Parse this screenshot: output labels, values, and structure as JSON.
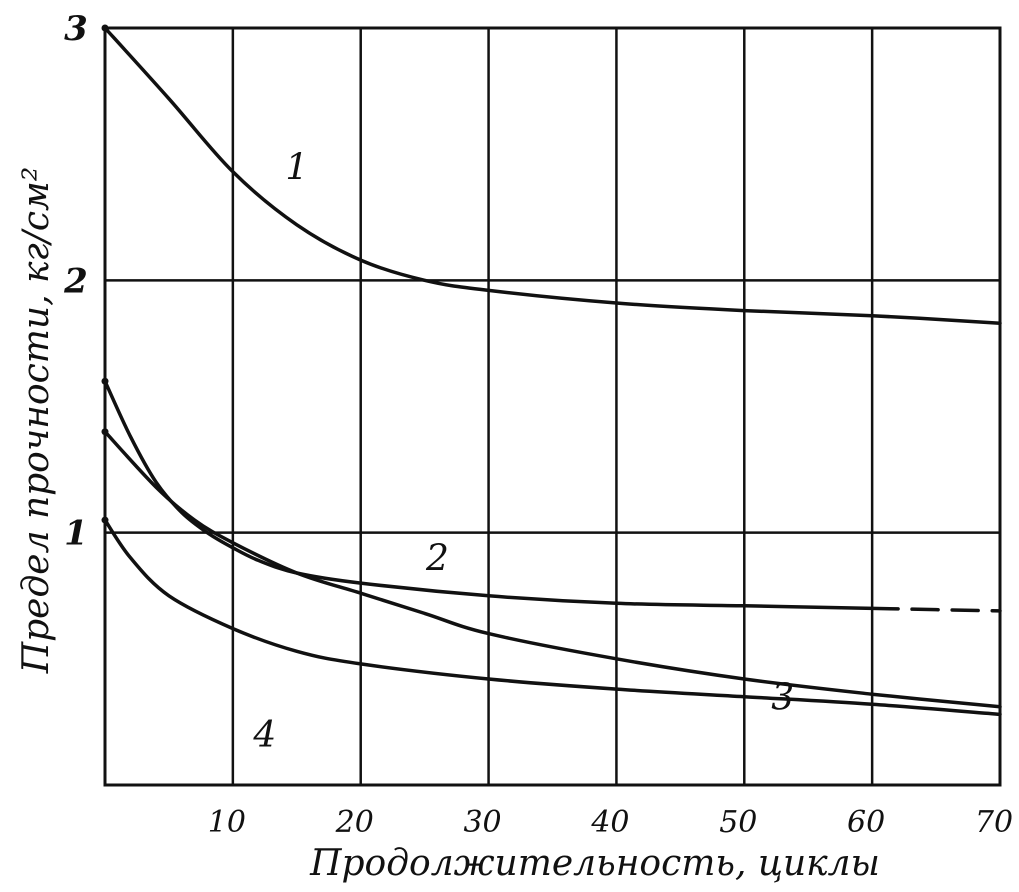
{
  "chart_data": {
    "type": "line",
    "title": "",
    "xlabel": "Продолжительность, циклы",
    "ylabel": "Предел прочности, кг/см²",
    "xlim": [
      0,
      70
    ],
    "ylim": [
      0,
      3
    ],
    "x_ticks": [
      {
        "value": 10,
        "label": "10"
      },
      {
        "value": 20,
        "label": "20"
      },
      {
        "value": 30,
        "label": "30"
      },
      {
        "value": 40,
        "label": "40"
      },
      {
        "value": 50,
        "label": "50"
      },
      {
        "value": 60,
        "label": "60"
      },
      {
        "value": 70,
        "label": "70"
      }
    ],
    "y_ticks": [
      {
        "value": 1,
        "label": "1"
      },
      {
        "value": 2,
        "label": "2"
      },
      {
        "value": 3,
        "label": "3"
      }
    ],
    "grid": true,
    "series": [
      {
        "name": "1",
        "label": "1",
        "label_at": [
          15,
          2.4
        ],
        "x": [
          0,
          5,
          10,
          15,
          20,
          25,
          30,
          40,
          50,
          60,
          70
        ],
        "y": [
          3.0,
          2.72,
          2.43,
          2.22,
          2.08,
          2.0,
          1.96,
          1.91,
          1.88,
          1.86,
          1.83
        ]
      },
      {
        "name": "2",
        "label": "2",
        "label_at": [
          26,
          0.85
        ],
        "x": [
          0,
          2,
          4,
          6,
          8,
          10,
          12,
          15,
          20,
          30,
          40,
          50,
          60,
          70
        ],
        "y": [
          1.6,
          1.38,
          1.2,
          1.08,
          1.0,
          0.94,
          0.89,
          0.84,
          0.8,
          0.75,
          0.72,
          0.71,
          0.7,
          0.69
        ],
        "dashed_from_x": 60
      },
      {
        "name": "3",
        "label": "3",
        "label_at": [
          53,
          0.3
        ],
        "x": [
          0,
          4,
          7,
          10,
          15,
          20,
          25,
          30,
          40,
          50,
          60,
          70
        ],
        "y": [
          1.4,
          1.18,
          1.05,
          0.96,
          0.84,
          0.76,
          0.68,
          0.6,
          0.5,
          0.42,
          0.36,
          0.31
        ]
      },
      {
        "name": "4",
        "label": "4",
        "label_at": [
          12.5,
          0.15
        ],
        "x": [
          0,
          2,
          5,
          10,
          15,
          20,
          30,
          40,
          50,
          60,
          70
        ],
        "y": [
          1.05,
          0.9,
          0.75,
          0.62,
          0.53,
          0.48,
          0.42,
          0.38,
          0.35,
          0.32,
          0.28
        ]
      }
    ]
  }
}
